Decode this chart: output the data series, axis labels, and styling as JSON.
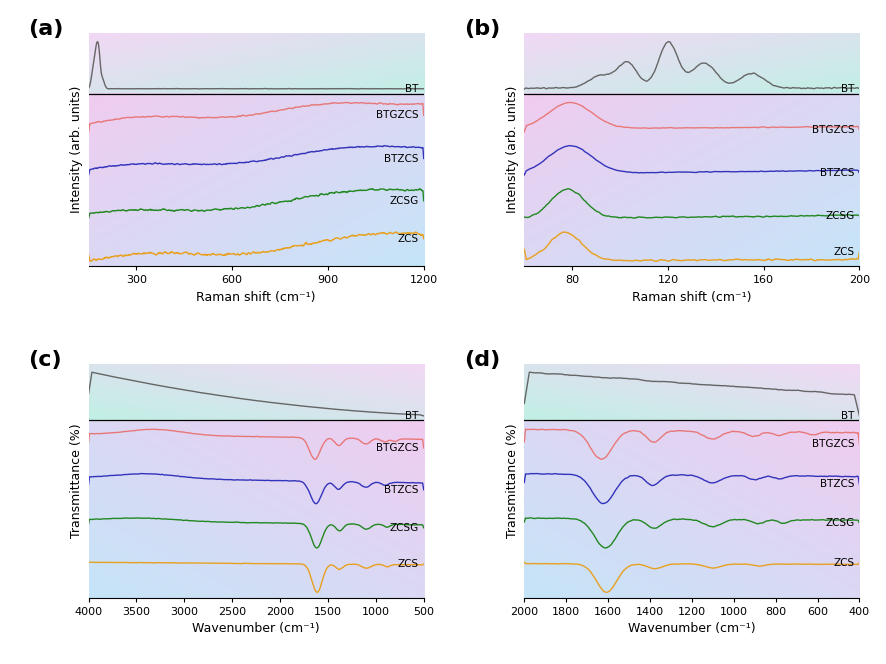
{
  "panel_labels": [
    "(a)",
    "(b)",
    "(c)",
    "(d)"
  ],
  "series_labels": [
    "BT",
    "BTGZCS",
    "BTZCS",
    "ZCSG",
    "ZCS"
  ],
  "series_colors": [
    "#666666",
    "#e87878",
    "#3333bb",
    "#228822",
    "#e8a020"
  ],
  "top_strip_colors": [
    "#f0d8f8",
    "#c8f0e8"
  ],
  "bottom_colors": [
    "#f0d0f0",
    "#c8e8f8"
  ],
  "panel_a": {
    "xlabel": "Raman shift (cm⁻¹)",
    "ylabel": "Intensity (arb. units)",
    "xmin": 150,
    "xmax": 1200,
    "xticks": [
      300,
      600,
      900,
      1200
    ]
  },
  "panel_b": {
    "xlabel": "Raman shift (cm⁻¹)",
    "ylabel": "Intensity (arb. units)",
    "xmin": 60,
    "xmax": 200,
    "xticks": [
      80,
      120,
      160,
      200
    ]
  },
  "panel_c": {
    "xlabel": "Wavenumber (cm⁻¹)",
    "ylabel": "Transmittance (%)",
    "xmin": 500,
    "xmax": 4000,
    "xticks": [
      500,
      1000,
      1500,
      2000,
      2500,
      3000,
      3500,
      4000
    ]
  },
  "panel_d": {
    "xlabel": "Wavenumber (cm⁻¹)",
    "ylabel": "Transmittance (%)",
    "xmin": 400,
    "xmax": 2000,
    "xticks": [
      400,
      600,
      800,
      1000,
      1200,
      1400,
      1600,
      1800,
      2000
    ]
  }
}
